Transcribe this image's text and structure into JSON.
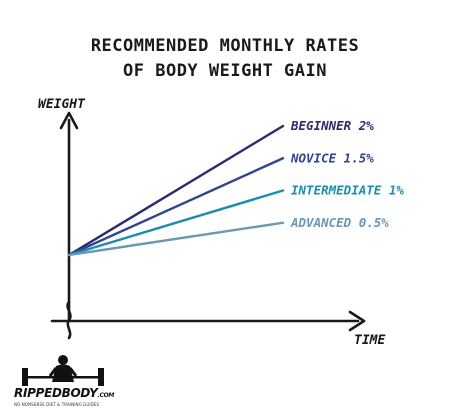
{
  "chart_data": {
    "type": "line",
    "title": "RECOMMENDED MONTHLY RATES",
    "subtitle": "OF BODY WEIGHT GAIN",
    "ylabel": "WEIGHT",
    "xlabel": "TIME",
    "x": [
      0,
      1
    ],
    "ylim": [
      0,
      3.2
    ],
    "xlim": [
      0,
      1
    ],
    "grid": false,
    "legend": "end-of-line labels",
    "series": [
      {
        "name": "BEGINNER 2%",
        "values": [
          0,
          2.0
        ],
        "color": "#2d2a6e"
      },
      {
        "name": "NOVICE 1.5%",
        "values": [
          0,
          1.5
        ],
        "color": "#2f4590"
      },
      {
        "name": "INTERMEDIATE 1%",
        "values": [
          0,
          1.0
        ],
        "color": "#1a8db0"
      },
      {
        "name": "ADVANCED 0.5%",
        "values": [
          0,
          0.5
        ],
        "color": "#6a98b4"
      }
    ]
  },
  "logo": {
    "word": "RIPPEDBODY",
    "domain": ".COM",
    "tagline": "NO NONSENSE DIET & TRAINING GUIDES",
    "icon": "barbell-lifter-icon"
  }
}
